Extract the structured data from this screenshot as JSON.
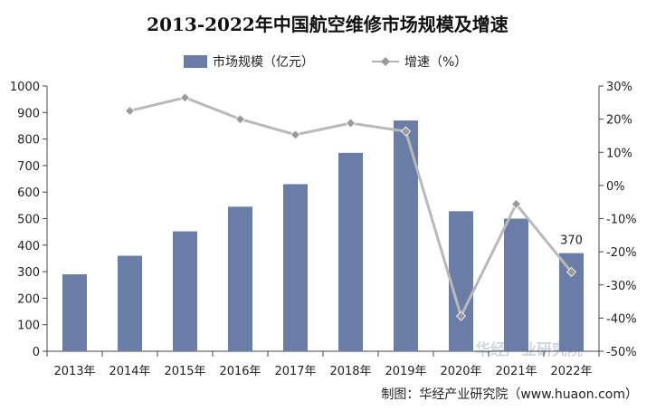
{
  "chart_data": {
    "type": "bar",
    "title": "2013-2022年中国航空维修市场规模及增速",
    "categories": [
      "2013年",
      "2014年",
      "2015年",
      "2016年",
      "2017年",
      "2018年",
      "2019年",
      "2020年",
      "2021年",
      "2022年"
    ],
    "series": [
      {
        "name": "市场规模（亿元）",
        "type": "bar",
        "axis": "left",
        "color": "#6a7da6",
        "values": [
          290,
          360,
          452,
          545,
          630,
          748,
          870,
          528,
          500,
          370
        ]
      },
      {
        "name": "增速（%）",
        "type": "line",
        "axis": "right",
        "color": "#b9b9b9",
        "marker_color": "#9a9a9a",
        "values": [
          null,
          22.5,
          26.5,
          20.0,
          15.3,
          18.8,
          16.3,
          -39.4,
          -5.6,
          -26.1
        ]
      }
    ],
    "y_left": {
      "min": 0,
      "max": 1000,
      "step": 100,
      "tick_labels": [
        "0",
        "100",
        "200",
        "300",
        "400",
        "500",
        "600",
        "700",
        "800",
        "900",
        "1000"
      ]
    },
    "y_right": {
      "min": -50,
      "max": 30,
      "step": 10,
      "tick_labels": [
        "-50%",
        "-40%",
        "-30%",
        "-20%",
        "-10%",
        "0%",
        "10%",
        "20%",
        "30%"
      ]
    },
    "data_labels": [
      {
        "category_index": 9,
        "series": 0,
        "text": "370"
      }
    ],
    "legend_position": "top-center",
    "grid": false
  },
  "legend": {
    "bar_label": "市场规模（亿元）",
    "line_label": "增速（%）"
  },
  "source": "制图：华经产业研究院（www.huaon.com）",
  "watermark": "华经产业研究院"
}
